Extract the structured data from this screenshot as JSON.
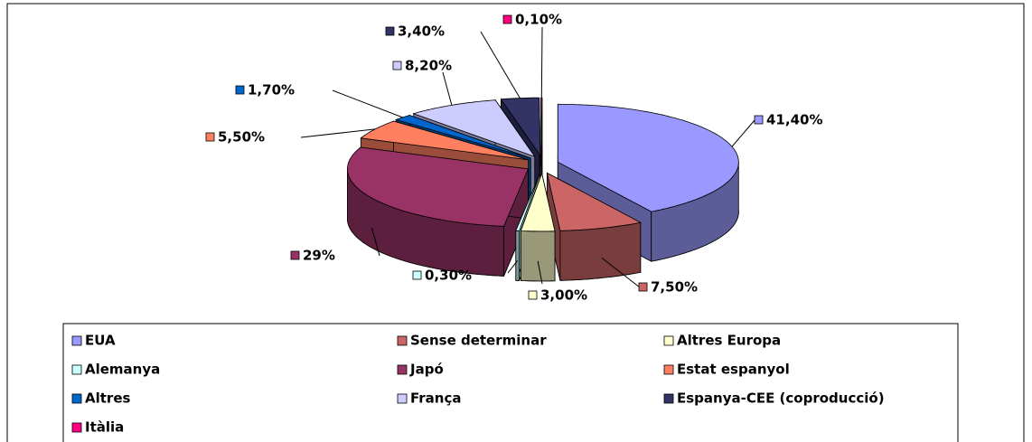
{
  "chart_data": {
    "type": "pie3d",
    "categories": [
      "EUA",
      "Sense determinar",
      "Altres Europa",
      "Alemanya",
      "Japó",
      "Estat espanyol",
      "Altres",
      "França",
      "Espanya-CEE (coproducció)",
      "Itàlia"
    ],
    "values": [
      41.4,
      7.5,
      3.0,
      0.3,
      29,
      5.5,
      1.7,
      8.2,
      3.4,
      0.1
    ],
    "value_labels": [
      "41,40%",
      "7,50%",
      "3,00%",
      "0,30%",
      "29%",
      "5,50%",
      "1,70%",
      "8,20%",
      "3,40%",
      "0,10%"
    ],
    "colors": [
      "#9999ff",
      "#cc6666",
      "#ffffcc",
      "#ccffff",
      "#993366",
      "#ff8060",
      "#0066cc",
      "#ccccff",
      "#333366",
      "#ff0080"
    ],
    "legend": "bottom"
  }
}
